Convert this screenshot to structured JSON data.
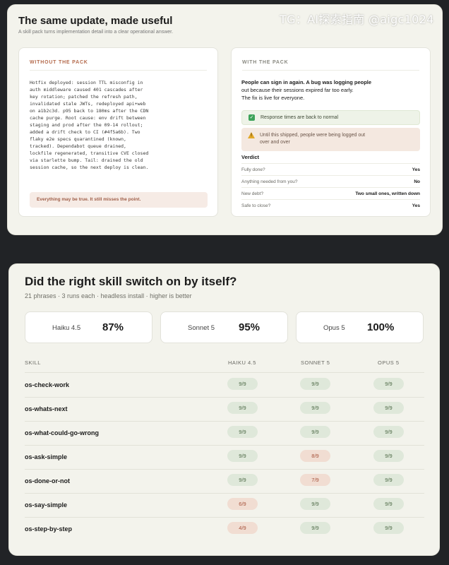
{
  "watermark": "TG：AI探索指南 @aigc1024",
  "top": {
    "title": "The same update, made useful",
    "subtitle": "A skill pack turns implementation detail into a clear operational answer.",
    "without": {
      "heading": "WITHOUT THE PACK",
      "lines": [
        "Hotfix deployed: session TTL misconfig in",
        "auth middleware caused 401 cascades after",
        "key rotation; patched the refresh path,",
        "invalidated stale JWTs, redeployed api+web",
        "on a1b2c3d. p95 back to 180ms after the CDN",
        "cache purge. Root cause: env drift between",
        "staging and prod after the 09-14 rollout;",
        "added a drift check to CI (#4f5a6b). Two",
        "flaky e2e specs quarantined (known,",
        "tracked). Dependabot queue drained,",
        "lockfile regenerated, transitive CVE closed",
        "via starlette bump. Tail: drained the old",
        "session cache, so the next deploy is clean."
      ],
      "footer": "Everything may be true. It still misses the point."
    },
    "with": {
      "heading": "WITH THE PACK",
      "lead_lines": [
        "People can sign in again. A bug was logging people",
        "out because their sessions expired far too early.",
        "The fix is live for everyone."
      ],
      "ok_icon": "check-mark",
      "ok_text": "Response times are back to normal",
      "caution_icon": "warning-triangle",
      "caution_lines": [
        "Until this shipped, people were being logged out",
        "over and over"
      ],
      "verdict_label": "Verdict",
      "verdict": [
        {
          "q": "Fully done?",
          "a": "Yes"
        },
        {
          "q": "Anything needed from you?",
          "a": "No"
        },
        {
          "q": "New debt?",
          "a": "Two small ones, written down"
        },
        {
          "q": "Safe to close?",
          "a": "Yes"
        }
      ]
    }
  },
  "bottom": {
    "title": "Did the right skill switch on by itself?",
    "subtitle": "21 phrases · 3 runs each · headless install · higher is better",
    "stats": [
      {
        "model": "Haiku 4.5",
        "pct": "87%"
      },
      {
        "model": "Sonnet 5",
        "pct": "95%"
      },
      {
        "model": "Opus 5",
        "pct": "100%"
      }
    ],
    "columns": [
      "SKILL",
      "HAIKU 4.5",
      "SONNET 5",
      "OPUS 5"
    ],
    "rows": [
      {
        "skill": "os-check-work",
        "scores": [
          "9/9",
          "9/9",
          "9/9"
        ],
        "status": [
          "good",
          "good",
          "good"
        ]
      },
      {
        "skill": "os-whats-next",
        "scores": [
          "9/9",
          "9/9",
          "9/9"
        ],
        "status": [
          "good",
          "good",
          "good"
        ]
      },
      {
        "skill": "os-what-could-go-wrong",
        "scores": [
          "9/9",
          "9/9",
          "9/9"
        ],
        "status": [
          "good",
          "good",
          "good"
        ]
      },
      {
        "skill": "os-ask-simple",
        "scores": [
          "9/9",
          "8/9",
          "9/9"
        ],
        "status": [
          "good",
          "bad",
          "good"
        ]
      },
      {
        "skill": "os-done-or-not",
        "scores": [
          "9/9",
          "7/9",
          "9/9"
        ],
        "status": [
          "good",
          "bad",
          "good"
        ]
      },
      {
        "skill": "os-say-simple",
        "scores": [
          "6/9",
          "9/9",
          "9/9"
        ],
        "status": [
          "bad",
          "good",
          "good"
        ]
      },
      {
        "skill": "os-step-by-step",
        "scores": [
          "4/9",
          "9/9",
          "9/9"
        ],
        "status": [
          "bad",
          "good",
          "good"
        ]
      }
    ],
    "colors": {
      "good_bg": "#dfe8da",
      "good_fg": "#4e6a47",
      "bad_bg": "#f1ddd2",
      "bad_fg": "#a6523b"
    }
  }
}
